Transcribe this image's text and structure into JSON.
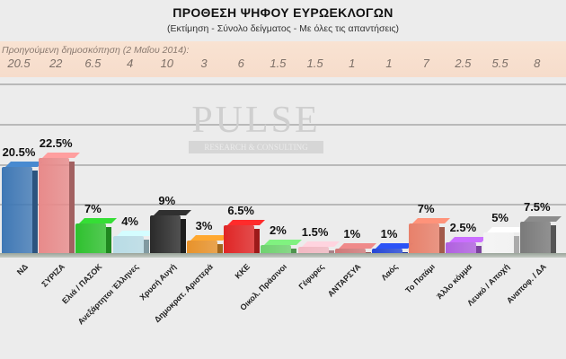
{
  "title": "ΠΡΟΘΕΣΗ ΨΗΦΟΥ ΕΥΡΩΕΚΛΟΓΩΝ",
  "subtitle": "(Εκτίμηση - Σύνολο δείγματος - Με όλες τις απαντήσεις)",
  "previous_poll": {
    "label": "Προηγούμενη δημοσκόπηση  (2 Μαΐου 2014):",
    "values": [
      "20.5",
      "22",
      "6.5",
      "4",
      "10",
      "3",
      "6",
      "1.5",
      "1.5",
      "1",
      "1",
      "7",
      "2.5",
      "5.5",
      "8"
    ]
  },
  "watermark": {
    "name": "PULSE",
    "tagline": "RESEARCH & CONSULTING"
  },
  "chart_data": {
    "type": "bar",
    "title": "ΠΡΟΘΕΣΗ ΨΗΦΟΥ ΕΥΡΩΕΚΛΟΓΩΝ",
    "subtitle": "(Εκτίμηση - Σύνολο δείγματος - Με όλες τις απαντήσεις)",
    "xlabel": "",
    "ylabel": "",
    "categories": [
      "ΝΔ",
      "ΣΥΡΙΖΑ",
      "Ελιά / ΠΑΣΟΚ",
      "Ανεξάρτητοι Έλληνες",
      "Χρυσή Αυγή",
      "Δημοκρατ. Αριστερά",
      "ΚΚΕ",
      "Οικολ. Πράσινοι",
      "Γέφυρες",
      "ΑΝΤΑΡΣΥΑ",
      "Λαός",
      "Το Ποτάμι",
      "Άλλο κόμμα",
      "Λευκό / Αποχή",
      "Αναποφ. / ΔΑ"
    ],
    "values": [
      20.5,
      22.5,
      7,
      4,
      9,
      3,
      6.5,
      2,
      1.5,
      1,
      1,
      7,
      2.5,
      5,
      7.5
    ],
    "labels": [
      "20.5%",
      "22.5%",
      "7%",
      "4%",
      "9%",
      "3%",
      "6.5%",
      "2%",
      "1.5%",
      "1%",
      "1%",
      "7%",
      "2.5%",
      "5%",
      "7.5%"
    ],
    "previous_values": [
      20.5,
      22,
      6.5,
      4,
      10,
      3,
      6,
      1.5,
      1.5,
      1,
      1,
      7,
      2.5,
      5.5,
      8
    ],
    "colors": [
      "#3f78b5",
      "#e88a8a",
      "#2ec12e",
      "#b8dce6",
      "#2a2a2a",
      "#e8922a",
      "#e02525",
      "#6fd26f",
      "#f2b8c2",
      "#d07878",
      "#2547d6",
      "#e8806a",
      "#b060e0",
      "#f4f4f4",
      "#7a7a7a"
    ],
    "ylim": [
      0,
      25
    ],
    "grid": true,
    "legend": "none"
  }
}
